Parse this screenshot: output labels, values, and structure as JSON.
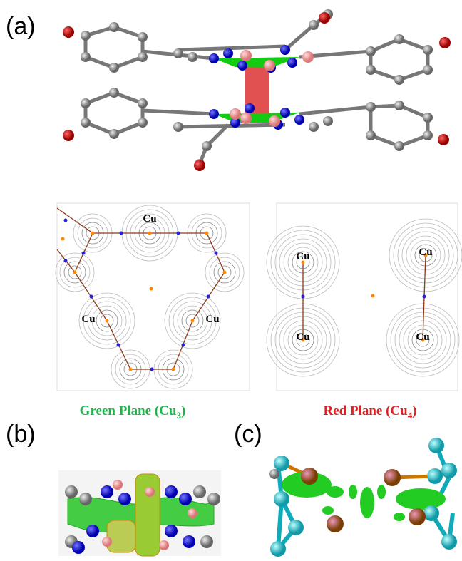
{
  "panel_labels": [
    "(a)",
    "(b)",
    "(c)"
  ],
  "maps": [
    {
      "atom_labels": [
        "Cu",
        "Cu",
        "Cu"
      ],
      "caption": {
        "text": "Green Plane (Cu",
        "sub": "3",
        "tail": ")"
      }
    },
    {
      "atom_labels": [
        "Cu",
        "Cu",
        "Cu",
        "Cu"
      ],
      "caption": {
        "text": "Red Plane (Cu",
        "sub": "4",
        "tail": ")"
      }
    }
  ]
}
